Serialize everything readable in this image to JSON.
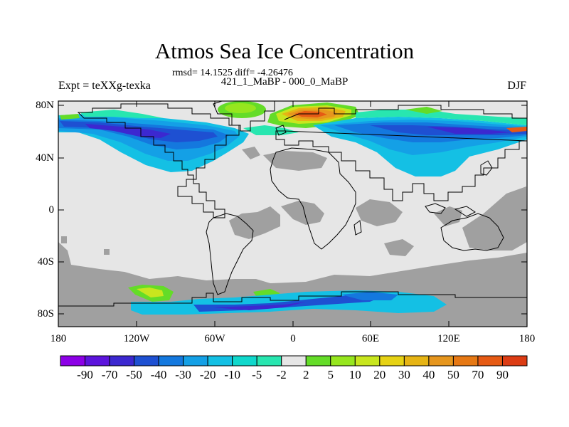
{
  "title": "Atmos Sea Ice Concentration",
  "stats": "rmsd= 14.1525 diff= -4.26476",
  "subtitle": "421_1_MaBP - 000_0_MaBP",
  "experiment": "Expt = teXXg-texka",
  "season": "DJF",
  "lat_labels": [
    "80N",
    "40N",
    "0",
    "40S",
    "80S"
  ],
  "lon_labels": [
    "180",
    "120W",
    "60W",
    "0",
    "60E",
    "120E",
    "180"
  ],
  "colorbar": {
    "labels": [
      "-90",
      "-70",
      "-50",
      "-40",
      "-30",
      "-20",
      "-10",
      "-5",
      "-2",
      "2",
      "5",
      "10",
      "20",
      "30",
      "40",
      "50",
      "70",
      "90"
    ],
    "colors": [
      "#8c00e6",
      "#5c14dc",
      "#3c28d0",
      "#1e50d2",
      "#1478de",
      "#14a0e6",
      "#14c0e4",
      "#10d8cc",
      "#28e6b0",
      "#e6e6e6",
      "#64dc28",
      "#96e61e",
      "#c8e61e",
      "#e6d214",
      "#e6b414",
      "#e6961e",
      "#e67814",
      "#e65a14",
      "#dc3c14"
    ]
  },
  "colors": {
    "land_background": "#e6e6e6",
    "land_grey": "#a0a0a0"
  }
}
